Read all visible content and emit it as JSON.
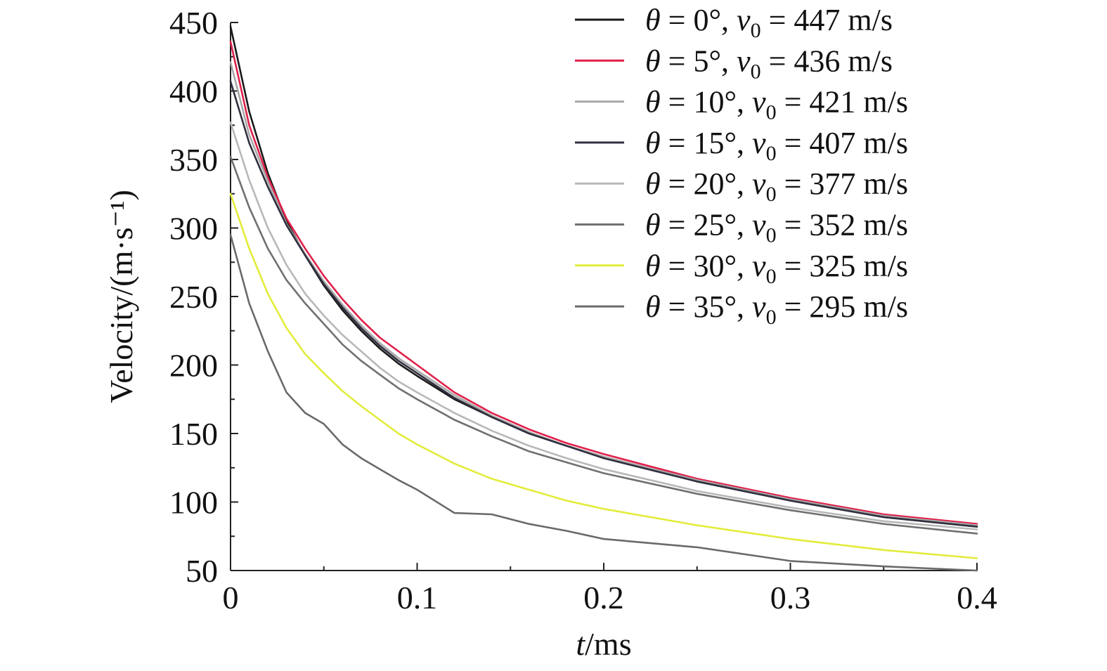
{
  "chart_data": {
    "type": "line",
    "title": "",
    "xlabel": "t/ms",
    "ylabel": "Velocity/(m·s⁻¹)",
    "xlim": [
      0,
      0.4
    ],
    "ylim": [
      50,
      450
    ],
    "xticks": [
      0,
      0.1,
      0.2,
      0.3,
      0.4
    ],
    "xtick_labels": [
      "0",
      "0.1",
      "0.2",
      "0.3",
      "0.4"
    ],
    "yticks": [
      50,
      100,
      150,
      200,
      250,
      300,
      350,
      400,
      450
    ],
    "ytick_labels": [
      "50",
      "100",
      "150",
      "200",
      "250",
      "300",
      "350",
      "400",
      "450"
    ],
    "legend_position": "top-right",
    "x": [
      0,
      0.01,
      0.02,
      0.03,
      0.04,
      0.05,
      0.06,
      0.07,
      0.08,
      0.09,
      0.1,
      0.12,
      0.14,
      0.16,
      0.18,
      0.2,
      0.25,
      0.3,
      0.35,
      0.4
    ],
    "series": [
      {
        "name": "θ = 0°, v₀ = 447 m/s",
        "theta": "0°",
        "v0": "447 m/s",
        "color": "#1a1a1a",
        "values": [
          447,
          385,
          340,
          305,
          280,
          258,
          240,
          225,
          212,
          201,
          192,
          175,
          162,
          150,
          141,
          133,
          115,
          101,
          89,
          82
        ]
      },
      {
        "name": "θ = 5°, v₀ = 436 m/s",
        "theta": "5°",
        "v0": "436 m/s",
        "color": "#e0204a",
        "values": [
          436,
          375,
          337,
          307,
          285,
          265,
          248,
          233,
          220,
          210,
          200,
          180,
          165,
          153,
          143,
          135,
          117,
          103,
          91,
          84
        ]
      },
      {
        "name": "θ = 10°, v₀ = 421 m/s",
        "theta": "10°",
        "v0": "421 m/s",
        "color": "#a8a8a8",
        "values": [
          421,
          368,
          334,
          303,
          281,
          261,
          244,
          229,
          216,
          205,
          196,
          178,
          163,
          151,
          141,
          133,
          116,
          102,
          90,
          83
        ]
      },
      {
        "name": "θ = 15°, v₀ = 407 m/s",
        "theta": "15°",
        "v0": "407 m/s",
        "color": "#303040",
        "values": [
          407,
          362,
          330,
          302,
          280,
          259,
          242,
          227,
          214,
          203,
          194,
          176,
          162,
          150,
          141,
          132,
          115,
          101,
          89,
          82
        ]
      },
      {
        "name": "θ = 20°, v₀ = 377 m/s",
        "theta": "20°",
        "v0": "377 m/s",
        "color": "#b8b8b8",
        "values": [
          377,
          335,
          300,
          273,
          252,
          236,
          222,
          210,
          198,
          188,
          180,
          165,
          152,
          141,
          132,
          124,
          108,
          96,
          86,
          80
        ]
      },
      {
        "name": "θ = 25°, v₀ = 352 m/s",
        "theta": "25°",
        "v0": "352 m/s",
        "color": "#707070",
        "values": [
          352,
          315,
          285,
          262,
          245,
          230,
          215,
          203,
          193,
          183,
          175,
          160,
          148,
          137,
          129,
          121,
          106,
          94,
          84,
          77
        ]
      },
      {
        "name": "θ = 30°, v₀ = 325 m/s",
        "theta": "30°",
        "v0": "325 m/s",
        "color": "#e2ec3a",
        "values": [
          325,
          285,
          252,
          227,
          208,
          194,
          181,
          170,
          160,
          150,
          142,
          128,
          117,
          109,
          101,
          95,
          83,
          73,
          65,
          59
        ]
      },
      {
        "name": "θ = 35°, v₀ = 295 m/s",
        "theta": "35°",
        "v0": "295 m/s",
        "color": "#6a6a6a",
        "values": [
          295,
          245,
          210,
          180,
          165,
          157,
          142,
          132,
          124,
          116,
          109,
          92,
          91,
          84,
          79,
          73,
          67,
          57,
          53,
          50
        ]
      }
    ],
    "extra_series_colors": [
      "#3c9e3c",
      "#4bc7c7",
      "#a040b0"
    ]
  }
}
